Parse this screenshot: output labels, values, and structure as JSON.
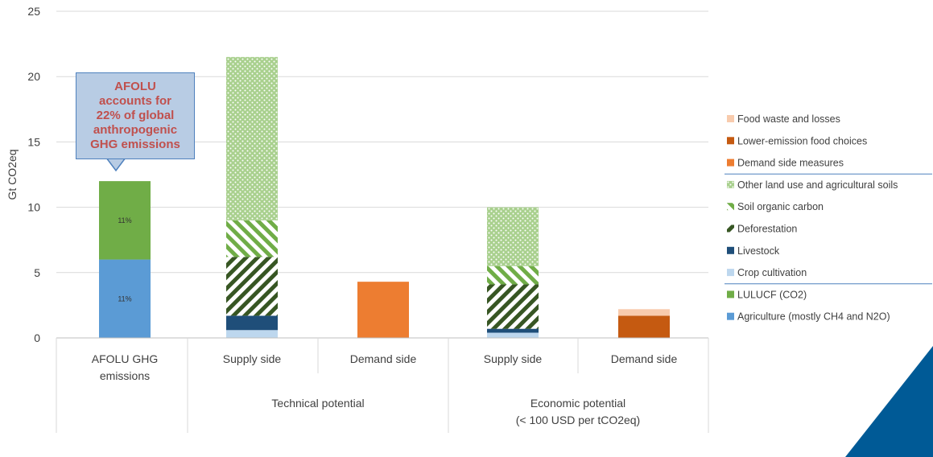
{
  "chart_data": {
    "type": "bar",
    "stacked": true,
    "ylabel": "Gt CO2eq",
    "ylim": [
      0,
      25
    ],
    "yticks": [
      0,
      5,
      10,
      15,
      20,
      25
    ],
    "gridlines": true,
    "legend_position": "right",
    "categories": [
      {
        "label_lines": [
          "AFOLU GHG",
          "emissions"
        ],
        "group": ""
      },
      {
        "label_lines": [
          "Supply side"
        ],
        "group": "Technical potential"
      },
      {
        "label_lines": [
          "Demand side"
        ],
        "group": "Technical potential"
      },
      {
        "label_lines": [
          "Supply side"
        ],
        "group": "Economic potential (< 100 USD per tCO2eq)"
      },
      {
        "label_lines": [
          "Demand side"
        ],
        "group": "Economic potential (< 100 USD per tCO2eq)"
      }
    ],
    "group_labels": [
      {
        "lines": [
          "Technical potential"
        ]
      },
      {
        "lines": [
          "Economic potential",
          "(< 100 USD per tCO2eq)"
        ]
      }
    ],
    "series": [
      {
        "name": "Agriculture (mostly CH4 and N2O)",
        "color": "#5b9bd5",
        "pattern": "solid",
        "values": [
          6.0,
          0,
          0,
          0,
          0
        ]
      },
      {
        "name": "LULUCF (CO2)",
        "color": "#70ad47",
        "pattern": "solid",
        "values": [
          6.0,
          0,
          0,
          0,
          0
        ]
      },
      {
        "name": "Crop cultivation",
        "color": "#bdd7ee",
        "pattern": "solid",
        "values": [
          0,
          0.6,
          0,
          0.4,
          0
        ]
      },
      {
        "name": "Livestock",
        "color": "#1f4e79",
        "pattern": "solid",
        "values": [
          0,
          1.1,
          0,
          0.3,
          0
        ]
      },
      {
        "name": "Deforestation",
        "color": "#375623",
        "pattern": "diag-dark",
        "values": [
          0,
          4.5,
          0,
          3.4,
          0
        ]
      },
      {
        "name": "Soil organic carbon",
        "color": "#70ad47",
        "pattern": "diag-light",
        "values": [
          0,
          2.8,
          0,
          1.4,
          0
        ]
      },
      {
        "name": "Other land use and agricultural soils",
        "color": "#a9d08e",
        "pattern": "dots",
        "values": [
          0,
          12.5,
          0,
          4.5,
          0
        ]
      },
      {
        "name": "Demand side measures",
        "color": "#ed7d31",
        "pattern": "solid",
        "values": [
          0,
          0,
          4.3,
          0,
          0
        ]
      },
      {
        "name": "Lower-emission food choices",
        "color": "#c55a11",
        "pattern": "solid",
        "values": [
          0,
          0,
          0,
          0,
          1.7
        ]
      },
      {
        "name": "Food waste and losses",
        "color": "#f8cbad",
        "pattern": "solid",
        "values": [
          0,
          0,
          0,
          0,
          0.5
        ]
      }
    ],
    "bar_labels": [
      {
        "category": 0,
        "series": 0,
        "text": "11%"
      },
      {
        "category": 0,
        "series": 1,
        "text": "11%"
      }
    ],
    "legend_order": [
      9,
      8,
      7,
      6,
      5,
      4,
      3,
      2,
      1,
      0
    ],
    "legend_separators_after": [
      2,
      7
    ],
    "annotation": {
      "lines": [
        "AFOLU",
        "accounts for",
        "22% of global",
        "anthropogenic",
        "GHG emissions"
      ]
    }
  }
}
